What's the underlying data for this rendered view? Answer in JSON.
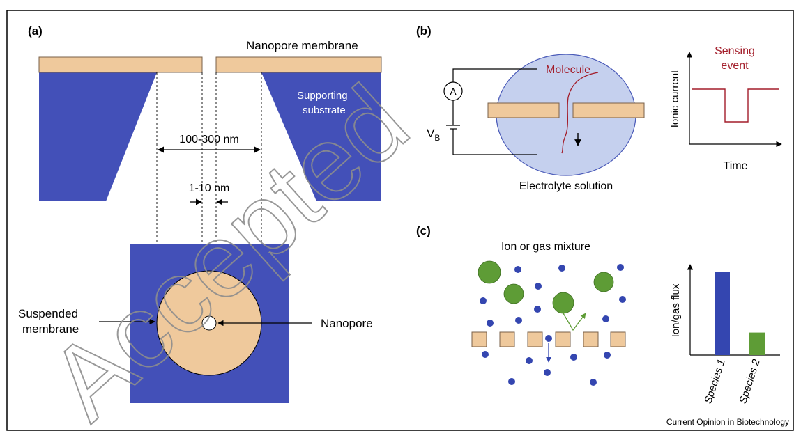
{
  "colors": {
    "substrate": "#4350b8",
    "membrane": "#efc99c",
    "membrane_stroke": "#7a6048",
    "solution_fill": "#c5d0ee",
    "solution_stroke": "#4a5ab8",
    "molecule": "#a31d2a",
    "species_blue": "#3446b0",
    "species_green": "#5e9c36",
    "watermark": "#8d8d8d",
    "line": "#000000"
  },
  "panel_a": {
    "label": "(a)",
    "nanopore_membrane": "Nanopore membrane",
    "supporting_substrate_line1": "Supporting",
    "supporting_substrate_line2": "substrate",
    "dimension_outer": "100-300 nm",
    "dimension_inner": "1-10 nm",
    "suspended_line1": "Suspended",
    "suspended_line2": "membrane",
    "nanopore": "Nanopore"
  },
  "panel_b": {
    "label": "(b)",
    "ammeter": "A",
    "voltage": "V",
    "voltage_sub": "B",
    "molecule": "Molecule",
    "electrolyte": "Electrolyte solution",
    "sensing_line1": "Sensing",
    "sensing_line2": "event",
    "ylabel": "Ionic current",
    "xlabel": "Time"
  },
  "panel_c": {
    "label": "(c)",
    "mixture": "Ion or gas mixture",
    "ylabel": "Ion/gas flux"
  },
  "chart_data": {
    "type": "bar",
    "categories": [
      "Species 1",
      "Species 2"
    ],
    "values": [
      1.0,
      0.27
    ],
    "colors": [
      "#3446b0",
      "#5e9c36"
    ],
    "xlabel": "",
    "ylabel": "Ion/gas flux",
    "ylim": [
      0,
      1.2
    ],
    "grid": false
  },
  "credit": "Current Opinion in Biotechnology",
  "watermark": "Accepted"
}
